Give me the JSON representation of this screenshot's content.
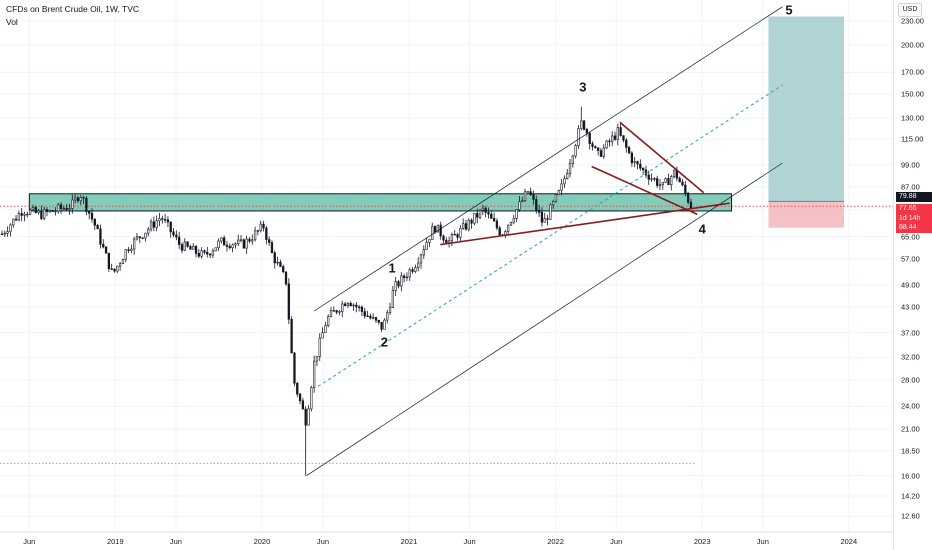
{
  "header": {
    "title": "CFDs on Brent Crude Oil, 1W, TVC",
    "indicator": "Vol"
  },
  "price_axis": {
    "currency": "USD",
    "last_price_label": "77.65",
    "countdown_label": "1d 14h",
    "zone_top_label": "79.88",
    "stop_label": "68.44"
  },
  "colors": {
    "bull_candle": "#131722",
    "bear_candle": "#131722",
    "zone_fill": "#6fc3ae",
    "target_fill": "#a8cfcf",
    "stop_fill": "#f2b6ba",
    "trendline_red": "#8b1a1a",
    "channel_line": "#131722",
    "mid_channel": "#26a69a",
    "price_label_red": "#f23645"
  },
  "chart_data": {
    "type": "candlestick",
    "symbol": "CFDs on Brent Crude Oil",
    "interval": "1W",
    "y_scale": "log",
    "ylim": [
      11.5,
      260
    ],
    "x_range": [
      "2018-03-20",
      "2024-04-20"
    ],
    "y_ticks": [
      "230.00",
      "200.00",
      "170.00",
      "150.00",
      "130.00",
      "115.00",
      "99.00",
      "87.00",
      "76.00",
      "65.00",
      "57.00",
      "49.00",
      "43.00",
      "37.00",
      "32.00",
      "28.00",
      "24.00",
      "21.00",
      "18.50",
      "16.00",
      "14.20",
      "12.60"
    ],
    "x_ticks": [
      "Jun",
      "2019",
      "Jun",
      "2020",
      "Jun",
      "2021",
      "Jun",
      "2022",
      "Jun",
      "2023",
      "Jun",
      "2024"
    ],
    "close_series": [
      [
        "2018-03-25",
        66
      ],
      [
        "2018-05-15",
        76
      ],
      [
        "2018-07-01",
        74
      ],
      [
        "2018-09-15",
        78
      ],
      [
        "2018-10-05",
        84
      ],
      [
        "2018-11-10",
        70
      ],
      [
        "2018-12-25",
        52
      ],
      [
        "2019-02-01",
        61
      ],
      [
        "2019-04-25",
        73
      ],
      [
        "2019-06-10",
        62
      ],
      [
        "2019-08-10",
        58
      ],
      [
        "2019-09-20",
        63
      ],
      [
        "2019-11-15",
        62
      ],
      [
        "2020-01-05",
        69
      ],
      [
        "2020-01-25",
        59
      ],
      [
        "2020-03-01",
        50
      ],
      [
        "2020-03-20",
        28
      ],
      [
        "2020-04-20",
        22
      ],
      [
        "2020-05-10",
        31
      ],
      [
        "2020-06-10",
        40
      ],
      [
        "2020-08-01",
        45
      ],
      [
        "2020-10-01",
        40
      ],
      [
        "2020-10-28",
        38
      ],
      [
        "2020-11-25",
        48
      ],
      [
        "2021-01-15",
        55
      ],
      [
        "2021-03-05",
        69
      ],
      [
        "2021-04-10",
        63
      ],
      [
        "2021-05-15",
        68
      ],
      [
        "2021-07-05",
        76
      ],
      [
        "2021-08-20",
        66
      ],
      [
        "2021-10-25",
        85
      ],
      [
        "2021-12-01",
        70
      ],
      [
        "2022-01-15",
        86
      ],
      [
        "2022-03-08",
        128
      ],
      [
        "2022-04-15",
        104
      ],
      [
        "2022-06-05",
        120
      ],
      [
        "2022-07-15",
        100
      ],
      [
        "2022-09-25",
        87
      ],
      [
        "2022-10-25",
        95
      ],
      [
        "2022-12-05",
        77.65
      ]
    ],
    "wicks": [
      {
        "date": "2020-04-21",
        "low": 16.0
      },
      {
        "date": "2022-03-07",
        "high": 139.0
      }
    ],
    "support_resistance_zone": {
      "low": 75.5,
      "high": 83.5,
      "from": "2018-06-01",
      "to": "2023-03-15"
    },
    "trend_channel": {
      "lower": [
        [
          "2020-04-21",
          16.0
        ],
        [
          "2023-07-20",
          100
        ]
      ],
      "middle": [
        [
          "2020-05-20",
          27
        ],
        [
          "2023-07-20",
          158
        ]
      ],
      "upper": [
        [
          "2020-05-10",
          42
        ],
        [
          "2023-07-20",
          250
        ]
      ]
    },
    "wedge": {
      "upper": [
        [
          "2022-06-10",
          127
        ],
        [
          "2023-01-05",
          84
        ]
      ],
      "lower": [
        [
          "2022-04-01",
          98
        ],
        [
          "2022-12-20",
          74
        ]
      ],
      "support_line": [
        [
          "2021-03-20",
          62
        ],
        [
          "2023-03-10",
          79
        ]
      ]
    },
    "low_reference_line": {
      "price": 17.2,
      "from": "2018-03-20",
      "to": "2022-12-15"
    },
    "position": {
      "entry": 79.88,
      "target": 236,
      "stop": 68.44,
      "from": "2023-06-15",
      "to": "2023-12-20"
    },
    "wave_labels": [
      {
        "label": "1",
        "date": "2020-11-20",
        "price": 54
      },
      {
        "label": "2",
        "date": "2020-11-01",
        "price": 35
      },
      {
        "label": "3",
        "date": "2022-03-10",
        "price": 156
      },
      {
        "label": "4",
        "date": "2023-01-01",
        "price": 68
      },
      {
        "label": "5",
        "date": "2023-08-05",
        "price": 245
      }
    ]
  }
}
